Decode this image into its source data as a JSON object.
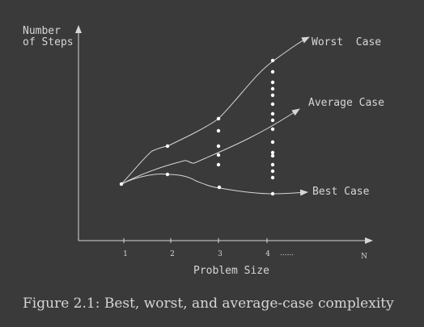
{
  "figure": {
    "y_axis_label_line1": "Number",
    "y_axis_label_line2": "of Steps",
    "x_axis_label": "Problem Size",
    "x_axis_end_label": "N",
    "ticks": [
      "1",
      "2",
      "3",
      "4"
    ],
    "ellipsis": "......",
    "curves": {
      "worst": "Worst  Case",
      "average": "Average Case",
      "best": "Best Case"
    },
    "colors": {
      "background": "#3a3a3a",
      "ink": "#d6d6d6"
    }
  },
  "caption": "Figure 2.1: Best, worst, and average-case complexity"
}
